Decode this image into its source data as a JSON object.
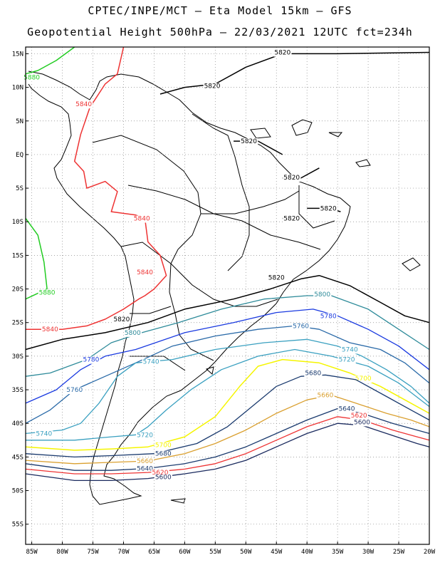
{
  "header": {
    "line1": "CPTEC/INPE/MCT –  Eta Model 15km – GFS",
    "line2": "Geopotential Height 500hPa – 22/03/2021 12UTC fct=234h"
  },
  "axes": {
    "lat_ticks": [
      "15N",
      "10N",
      "5N",
      "EQ",
      "5S",
      "10S",
      "15S",
      "20S",
      "25S",
      "30S",
      "35S",
      "40S",
      "45S",
      "50S",
      "55S"
    ],
    "lat_values": [
      15,
      10,
      5,
      0,
      -5,
      -10,
      -15,
      -20,
      -25,
      -30,
      -35,
      -40,
      -45,
      -50,
      -55
    ],
    "lon_ticks": [
      "85W",
      "80W",
      "75W",
      "70W",
      "65W",
      "60W",
      "55W",
      "50W",
      "45W",
      "40W",
      "35W",
      "30W",
      "25W",
      "20W"
    ],
    "lon_values": [
      -85,
      -80,
      -75,
      -70,
      -65,
      -60,
      -55,
      -50,
      -45,
      -40,
      -35,
      -30,
      -25,
      -20
    ],
    "lon_range": [
      -86,
      -20
    ],
    "lat_range": [
      -58,
      16
    ]
  },
  "contours": [
    {
      "value": "5880",
      "color": "#22cc22",
      "width": 1.5,
      "labels": [
        [
          -85,
          11.5
        ],
        [
          -82.5,
          -20.5
        ]
      ],
      "paths": [
        [
          [
            -86,
            12
          ],
          [
            -84,
            12.5
          ],
          [
            -81,
            14
          ],
          [
            -78,
            16
          ]
        ],
        [
          [
            -86,
            -9.5
          ],
          [
            -84,
            -12
          ],
          [
            -83,
            -16
          ],
          [
            -82.5,
            -20
          ],
          [
            -86,
            -21.5
          ]
        ]
      ]
    },
    {
      "value": "5840",
      "color": "#ee3333",
      "width": 1.5,
      "labels": [
        [
          -76.5,
          7.5
        ],
        [
          -67,
          -9.5
        ],
        [
          -66.5,
          -17.5
        ],
        [
          -82,
          -26
        ]
      ],
      "paths": [
        [
          [
            -70,
            16
          ],
          [
            -71,
            12
          ],
          [
            -73,
            10.5
          ],
          [
            -75.5,
            7
          ],
          [
            -77,
            3
          ],
          [
            -78,
            -1
          ],
          [
            -76.5,
            -2.5
          ],
          [
            -76,
            -5
          ],
          [
            -73,
            -4
          ],
          [
            -71,
            -5.5
          ],
          [
            -72,
            -8.5
          ],
          [
            -68,
            -9
          ],
          [
            -66.5,
            -9.5
          ],
          [
            -66,
            -13
          ],
          [
            -64,
            -15
          ],
          [
            -63,
            -18
          ],
          [
            -65,
            -20
          ],
          [
            -66.5,
            -21
          ],
          [
            -67.5,
            -21.5
          ],
          [
            -70,
            -23
          ],
          [
            -73,
            -24.5
          ],
          [
            -76,
            -25.5
          ],
          [
            -80,
            -26
          ],
          [
            -86,
            -26
          ]
        ]
      ]
    },
    {
      "value": "5820",
      "color": "#000000",
      "width": 1.5,
      "labels": [
        [
          -44,
          15.2
        ],
        [
          -55.5,
          10.2
        ],
        [
          -49.5,
          2
        ],
        [
          -42.5,
          -3.4
        ],
        [
          -36.5,
          -8
        ],
        [
          -42.5,
          -9.5
        ],
        [
          -45,
          -18.3
        ],
        [
          -70.3,
          -24.5
        ]
      ],
      "paths": [
        [
          [
            -20,
            15.2
          ],
          [
            -35,
            15
          ],
          [
            -44,
            15
          ],
          [
            -50,
            13
          ],
          [
            -55,
            10.5
          ],
          [
            -60,
            10
          ],
          [
            -64,
            9
          ]
        ],
        [
          [
            -52,
            2
          ],
          [
            -48,
            2
          ],
          [
            -44,
            0
          ]
        ],
        [
          [
            -44,
            -3.5
          ],
          [
            -41,
            -3.5
          ],
          [
            -38,
            -2
          ]
        ],
        [
          [
            -40,
            -8
          ],
          [
            -36.5,
            -8
          ],
          [
            -34.5,
            -8.5
          ]
        ],
        [
          [
            -44,
            -9.5
          ],
          [
            -41,
            -9.5
          ]
        ],
        [
          [
            -86,
            -29
          ],
          [
            -80,
            -27.5
          ],
          [
            -73,
            -26.5
          ],
          [
            -66,
            -25
          ],
          [
            -60,
            -23
          ],
          [
            -52,
            -21.5
          ],
          [
            -46,
            -20
          ],
          [
            -41,
            -18.5
          ],
          [
            -38,
            -18
          ],
          [
            -33,
            -19.5
          ],
          [
            -28,
            -22
          ],
          [
            -24,
            -24
          ],
          [
            -20,
            -25
          ]
        ]
      ]
    },
    {
      "value": "5800",
      "color": "#2e8b9a",
      "width": 1.3,
      "labels": [
        [
          -68.5,
          -26.5
        ],
        [
          -37.5,
          -20.8
        ]
      ],
      "paths": [
        [
          [
            -86,
            -33
          ],
          [
            -82,
            -32.5
          ],
          [
            -76,
            -30.5
          ],
          [
            -72,
            -28
          ],
          [
            -67,
            -26.5
          ],
          [
            -61,
            -25
          ],
          [
            -54,
            -23
          ],
          [
            -47,
            -21.5
          ],
          [
            -40,
            -21
          ],
          [
            -36,
            -21
          ],
          [
            -30,
            -23
          ],
          [
            -25,
            -26
          ],
          [
            -20,
            -29
          ]
        ]
      ]
    },
    {
      "value": "5780",
      "color": "#1a3ae0",
      "width": 1.3,
      "labels": [
        [
          -75.3,
          -30.5
        ],
        [
          -36.5,
          -24
        ]
      ],
      "paths": [
        [
          [
            -86,
            -37
          ],
          [
            -81,
            -35
          ],
          [
            -77,
            -32
          ],
          [
            -73,
            -30
          ],
          [
            -68,
            -29
          ],
          [
            -60,
            -26.5
          ],
          [
            -52,
            -25
          ],
          [
            -45,
            -23.5
          ],
          [
            -39,
            -23
          ],
          [
            -35,
            -24
          ],
          [
            -30,
            -26
          ],
          [
            -25,
            -28.5
          ],
          [
            -20,
            -32
          ]
        ]
      ]
    },
    {
      "value": "5760",
      "color": "#2a6aa8",
      "width": 1.3,
      "labels": [
        [
          -78,
          -35
        ],
        [
          -41,
          -25.5
        ]
      ],
      "paths": [
        [
          [
            -86,
            -40
          ],
          [
            -82,
            -38
          ],
          [
            -78,
            -35
          ],
          [
            -73,
            -33
          ],
          [
            -68,
            -31
          ],
          [
            -62,
            -28.5
          ],
          [
            -55,
            -27
          ],
          [
            -48,
            -26
          ],
          [
            -42,
            -25.5
          ],
          [
            -38,
            -26
          ],
          [
            -33,
            -28
          ],
          [
            -28,
            -29
          ],
          [
            -24,
            -31
          ],
          [
            -20,
            -34
          ]
        ]
      ]
    },
    {
      "value": "5740",
      "color": "#3aa0c0",
      "width": 1.3,
      "labels": [
        [
          -83,
          -41.5
        ],
        [
          -65.5,
          -30.8
        ],
        [
          -33,
          -29
        ]
      ],
      "paths": [
        [
          [
            -86,
            -41.5
          ],
          [
            -80,
            -41
          ],
          [
            -77,
            -40
          ],
          [
            -74,
            -37
          ],
          [
            -71,
            -33
          ],
          [
            -68,
            -31
          ],
          [
            -62,
            -30.5
          ],
          [
            -55,
            -29
          ],
          [
            -47,
            -28
          ],
          [
            -40,
            -27.5
          ],
          [
            -35,
            -28.5
          ],
          [
            -31,
            -30
          ],
          [
            -27,
            -32
          ],
          [
            -23,
            -34.5
          ],
          [
            -20,
            -37
          ]
        ]
      ]
    },
    {
      "value": "5720",
      "color": "#3aa0c0",
      "width": 1.3,
      "labels": [
        [
          -66.5,
          -41.7
        ],
        [
          -33.5,
          -30.5
        ]
      ],
      "paths": [
        [
          [
            -86,
            -42.5
          ],
          [
            -78,
            -42.5
          ],
          [
            -72,
            -42
          ],
          [
            -68,
            -41.7
          ],
          [
            -66,
            -40.5
          ],
          [
            -63,
            -38
          ],
          [
            -59,
            -35
          ],
          [
            -54,
            -32
          ],
          [
            -48,
            -30
          ],
          [
            -42,
            -29
          ],
          [
            -36,
            -30
          ],
          [
            -30,
            -31.5
          ],
          [
            -25,
            -34
          ],
          [
            -20,
            -37.5
          ]
        ]
      ]
    },
    {
      "value": "5700",
      "color": "#f5f500",
      "width": 1.5,
      "labels": [
        [
          -63.5,
          -43.2
        ],
        [
          -30.8,
          -33.3
        ]
      ],
      "paths": [
        [
          [
            -86,
            -43.5
          ],
          [
            -78,
            -44
          ],
          [
            -72,
            -43.8
          ],
          [
            -66,
            -43.5
          ],
          [
            -60,
            -42
          ],
          [
            -55,
            -39
          ],
          [
            -51,
            -34.5
          ],
          [
            -48,
            -31.5
          ],
          [
            -44,
            -30.5
          ],
          [
            -38,
            -31
          ],
          [
            -33,
            -32.5
          ],
          [
            -28,
            -34.5
          ],
          [
            -24,
            -36.5
          ],
          [
            -20,
            -38.5
          ]
        ]
      ]
    },
    {
      "value": "5680",
      "color": "#1a3a6e",
      "width": 1.3,
      "labels": [
        [
          -63.5,
          -44.5
        ],
        [
          -39,
          -32.5
        ]
      ],
      "paths": [
        [
          [
            -86,
            -44.5
          ],
          [
            -78,
            -45
          ],
          [
            -72,
            -44.8
          ],
          [
            -65,
            -44.5
          ],
          [
            -58,
            -43
          ],
          [
            -53,
            -40.5
          ],
          [
            -49,
            -37.5
          ],
          [
            -45,
            -34.5
          ],
          [
            -41,
            -33
          ],
          [
            -37,
            -32.8
          ],
          [
            -32,
            -33.5
          ],
          [
            -27,
            -36
          ],
          [
            -23,
            -38
          ],
          [
            -20,
            -39.5
          ]
        ]
      ]
    },
    {
      "value": "5660",
      "color": "#daa030",
      "width": 1.3,
      "labels": [
        [
          -66.5,
          -45.6
        ],
        [
          -37,
          -35.8
        ]
      ],
      "paths": [
        [
          [
            -86,
            -45.5
          ],
          [
            -78,
            -46
          ],
          [
            -72,
            -45.8
          ],
          [
            -66,
            -45.6
          ],
          [
            -60,
            -44.5
          ],
          [
            -55,
            -43
          ],
          [
            -50,
            -41
          ],
          [
            -45,
            -38.5
          ],
          [
            -40,
            -36.5
          ],
          [
            -36,
            -35.8
          ],
          [
            -32,
            -37
          ],
          [
            -27,
            -38.5
          ],
          [
            -23,
            -39.5
          ],
          [
            -20,
            -40.5
          ]
        ]
      ]
    },
    {
      "value": "5640",
      "color": "#1a3a6e",
      "width": 1.3,
      "labels": [
        [
          -66.5,
          -46.7
        ],
        [
          -33.5,
          -37.8
        ]
      ],
      "paths": [
        [
          [
            -86,
            -46
          ],
          [
            -78,
            -47
          ],
          [
            -72,
            -47
          ],
          [
            -66,
            -46.7
          ],
          [
            -60,
            -46
          ],
          [
            -55,
            -45
          ],
          [
            -50,
            -43.5
          ],
          [
            -45,
            -41.5
          ],
          [
            -40,
            -39.5
          ],
          [
            -35,
            -37.8
          ],
          [
            -31,
            -38.5
          ],
          [
            -26,
            -40
          ],
          [
            -22,
            -41
          ],
          [
            -20,
            -41.5
          ]
        ]
      ]
    },
    {
      "value": "5620",
      "color": "#ee3333",
      "width": 1.3,
      "labels": [
        [
          -64,
          -47.3
        ],
        [
          -31.5,
          -38.8
        ]
      ],
      "paths": [
        [
          [
            -86,
            -46.8
          ],
          [
            -78,
            -47.5
          ],
          [
            -72,
            -47.5
          ],
          [
            -66,
            -47.3
          ],
          [
            -60,
            -46.8
          ],
          [
            -55,
            -46
          ],
          [
            -50,
            -44.5
          ],
          [
            -45,
            -42.5
          ],
          [
            -40,
            -40.5
          ],
          [
            -35,
            -39
          ],
          [
            -31,
            -39.5
          ],
          [
            -26,
            -41
          ],
          [
            -22,
            -42
          ],
          [
            -20,
            -42.5
          ]
        ]
      ]
    },
    {
      "value": "5600",
      "color": "#1a2a5e",
      "width": 1.3,
      "labels": [
        [
          -63.5,
          -48
        ],
        [
          -31,
          -39.8
        ]
      ],
      "paths": [
        [
          [
            -86,
            -47.5
          ],
          [
            -78,
            -48.5
          ],
          [
            -72,
            -48.5
          ],
          [
            -66,
            -48.2
          ],
          [
            -60,
            -47.5
          ],
          [
            -55,
            -46.8
          ],
          [
            -50,
            -45.5
          ],
          [
            -45,
            -43.5
          ],
          [
            -40,
            -41.5
          ],
          [
            -35,
            -40
          ],
          [
            -31,
            -40.3
          ],
          [
            -26,
            -41.8
          ],
          [
            -22,
            -43
          ],
          [
            -20,
            -43.5
          ]
        ]
      ]
    }
  ]
}
